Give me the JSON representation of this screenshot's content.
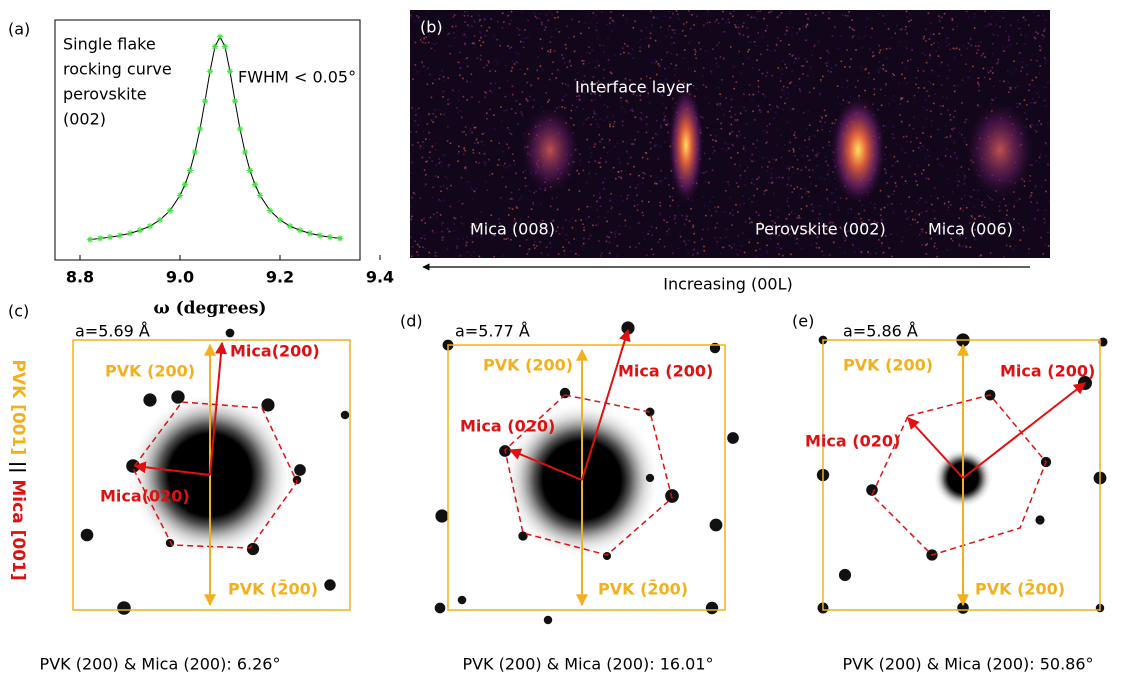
{
  "chart_data": {
    "type": "line",
    "panel_label": "(a)",
    "annotation_lines": [
      "Single flake",
      "rocking curve",
      "perovskite",
      "(002)"
    ],
    "annotation": "FWHM < 0.05°",
    "xlabel": "ω (degrees)",
    "x": [
      8.82,
      8.84,
      8.86,
      8.88,
      8.9,
      8.92,
      8.94,
      8.96,
      8.98,
      9.0,
      9.01,
      9.02,
      9.03,
      9.04,
      9.05,
      9.06,
      9.07,
      9.08,
      9.09,
      9.1,
      9.11,
      9.12,
      9.13,
      9.14,
      9.15,
      9.16,
      9.18,
      9.2,
      9.22,
      9.24,
      9.26,
      9.28,
      9.3,
      9.32
    ],
    "series": [
      {
        "color": "#3fe03f",
        "line_color": "#000000",
        "values": [
          0.085,
          0.09,
          0.095,
          0.102,
          0.111,
          0.124,
          0.141,
          0.167,
          0.206,
          0.269,
          0.314,
          0.373,
          0.45,
          0.546,
          0.662,
          0.786,
          0.889,
          0.93,
          0.889,
          0.786,
          0.662,
          0.546,
          0.45,
          0.373,
          0.314,
          0.269,
          0.206,
          0.167,
          0.141,
          0.124,
          0.111,
          0.102,
          0.095,
          0.09
        ]
      }
    ],
    "xlim": [
      8.75,
      9.36
    ],
    "xticks": [
      8.8,
      {
        "value": 9,
        "label": "9.0"
      },
      9.2,
      9.4
    ],
    "ylim": [
      0,
      1
    ]
  },
  "panel_b": {
    "label": "(b)",
    "interface": "Interface layer",
    "peaks": [
      "Mica (008)",
      "Perovskite (002)",
      "Mica (006)"
    ],
    "axis": "Increasing (00L)"
  },
  "side_label": {
    "pvk": "PVK [001]",
    "sep": "||",
    "mica": "Mica [001]"
  },
  "panels": [
    {
      "label": "(c)",
      "lattice": "a=5.69 Å",
      "pvk_top": "PVK (200)",
      "mica_200": "Mica(200)",
      "mica_020": "Mica(020)",
      "pvk_bottom": "PVK (2̄00)",
      "caption": "PVK (200) & Mica (200): 6.26°"
    },
    {
      "label": "(d)",
      "lattice": "a=5.77 Å",
      "pvk_top": "PVK (200)",
      "mica_200": "Mica (200)",
      "mica_020": "Mica (020)",
      "pvk_bottom": "PVK (2̄00)",
      "caption": "PVK (200) & Mica (200): 16.01°"
    },
    {
      "label": "(e)",
      "lattice": "a=5.86 Å",
      "pvk_top": "PVK (200)",
      "mica_200": "Mica (200)",
      "mica_020": "Mica (020)",
      "pvk_bottom": "PVK (2̄00)",
      "caption": "PVK (200) & Mica (200): 50.86°"
    }
  ]
}
